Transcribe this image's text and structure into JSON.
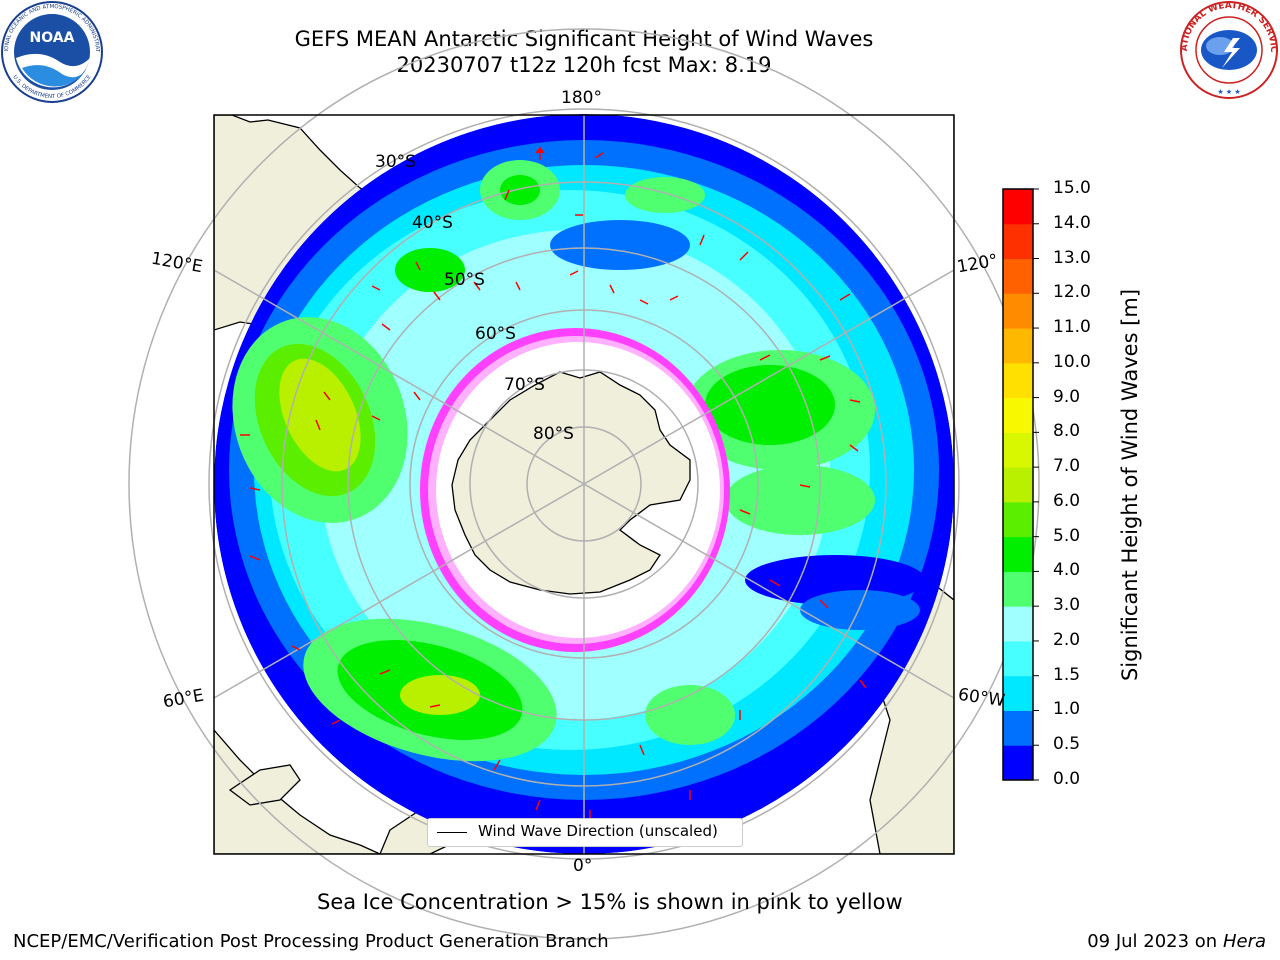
{
  "title": {
    "line1": "GEFS MEAN Antarctic Significant Height of Wind Waves",
    "line2": "20230707 t12z 120h fcst   Max: 8.19"
  },
  "logos": {
    "noaa_text": "NOAA",
    "noaa_ring": "NATIONAL OCEANIC AND ATMOSPHERIC ADMINISTRATION",
    "noaa_ring_bottom": "U.S. DEPARTMENT OF COMMERCE",
    "nws_ring": "NATIONAL WEATHER SERVICE"
  },
  "map": {
    "projection": "south-polar-stereographic",
    "longitude_labels": [
      "180°",
      "120°E",
      "120°",
      "60°E",
      "60°W",
      "0°"
    ],
    "latitude_labels": [
      "30°S",
      "40°S",
      "50°S",
      "60°S",
      "70°S",
      "80°S"
    ],
    "land_color": "#efefdb",
    "ocean_color": "#ffffff",
    "grid_color": "#b0b0b0",
    "arrow_color": "#ff0000",
    "legend_label": "Wind Wave Direction (unscaled)"
  },
  "colorbar": {
    "label": "Significant Height of Wind Waves [m]",
    "ticks": [
      "0.0",
      "0.5",
      "1.0",
      "1.5",
      "2.0",
      "3.0",
      "4.0",
      "5.0",
      "6.0",
      "7.0",
      "8.0",
      "9.0",
      "10.0",
      "11.0",
      "12.0",
      "13.0",
      "14.0",
      "15.0"
    ],
    "colors": [
      "#0000ff",
      "#0070ff",
      "#00e8ff",
      "#48ffff",
      "#a0ffff",
      "#50ff70",
      "#00ee00",
      "#5cee00",
      "#b8f000",
      "#d8f800",
      "#f8f800",
      "#ffe000",
      "#ffb800",
      "#ff8c00",
      "#ff6000",
      "#ff3000",
      "#ff0000"
    ]
  },
  "note": "Sea Ice Concentration > 15% is shown in pink to yellow",
  "footer": {
    "left": "NCEP/EMC/Verification Post Processing Product Generation Branch",
    "right_date": "09 Jul 2023 on ",
    "right_host": "Hera"
  }
}
